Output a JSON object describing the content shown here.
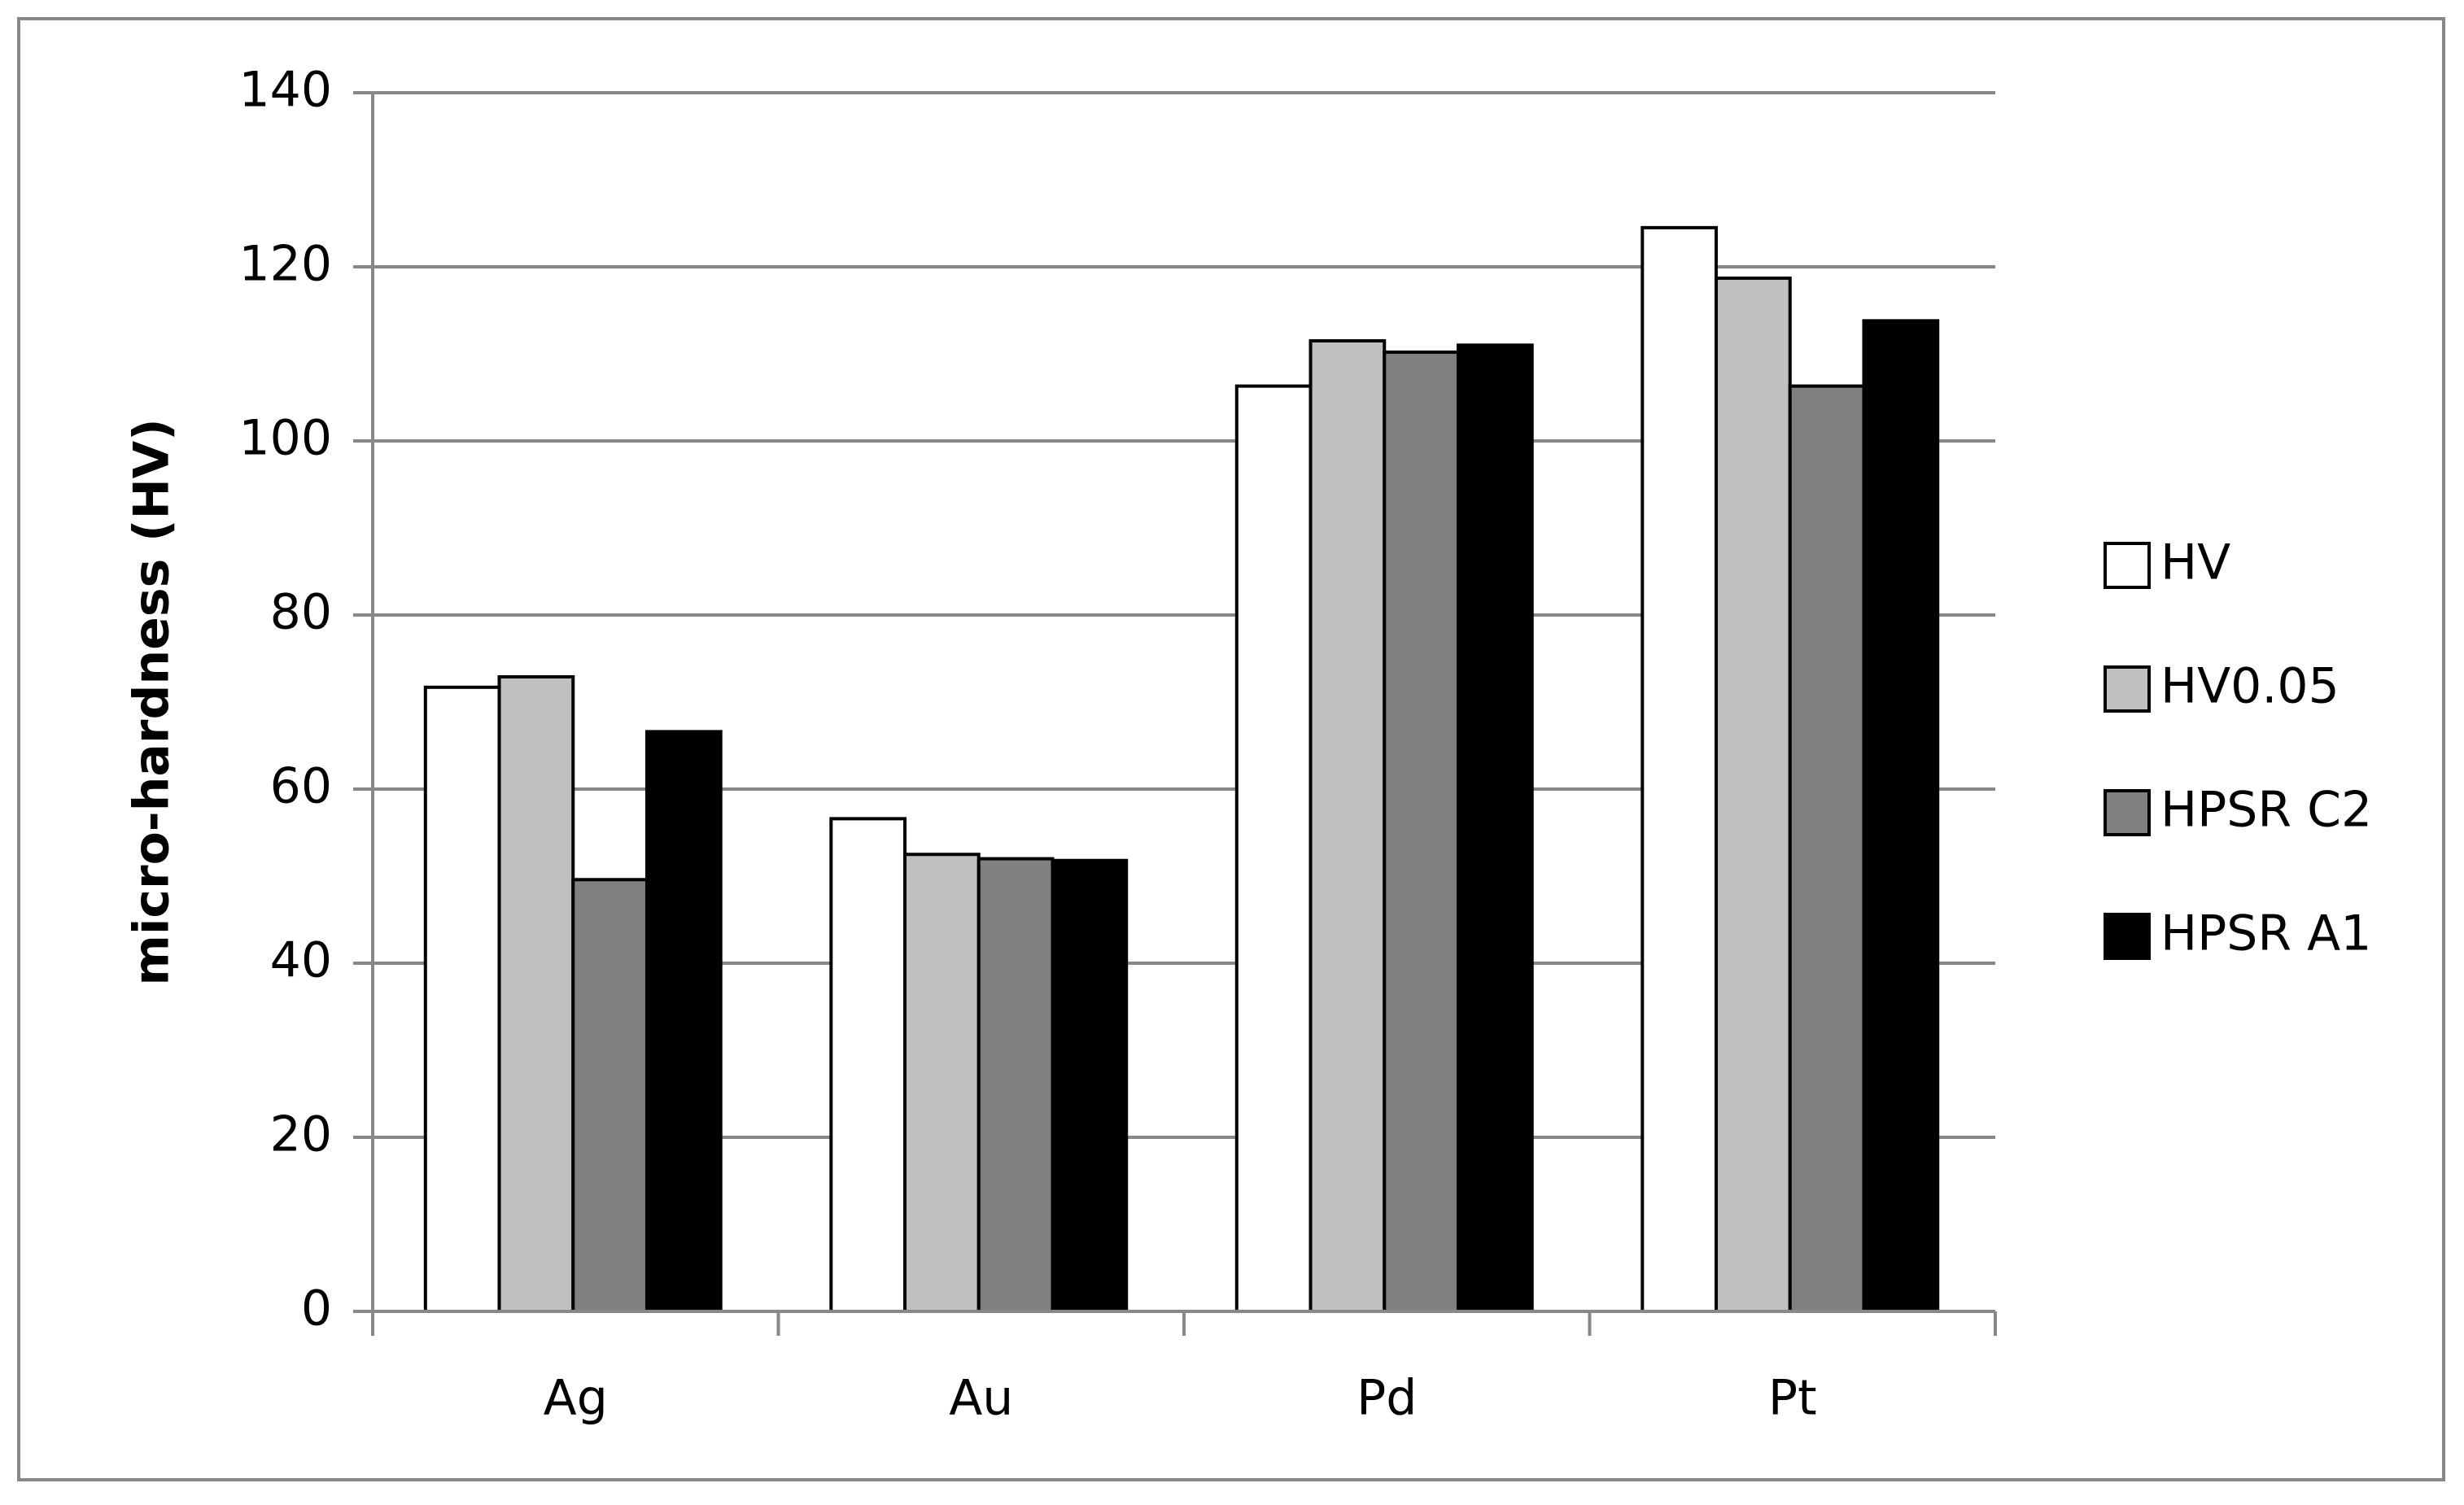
{
  "chart_data": {
    "type": "bar",
    "ylabel": "micro-hardness (HV)",
    "categories": [
      "Ag",
      "Au",
      "Pd",
      "Pt"
    ],
    "series": [
      {
        "name": "HV",
        "color": "#ffffff",
        "values": [
          71.7,
          56.6,
          106.3,
          124.5
        ]
      },
      {
        "name": "HV0.05",
        "color": "#c0c0c0",
        "values": [
          72.9,
          52.5,
          111.5,
          118.7
        ]
      },
      {
        "name": "HPSR C2",
        "color": "#808080",
        "values": [
          49.6,
          52.0,
          110.2,
          106.3
        ]
      },
      {
        "name": "HPSR A1",
        "color": "#000000",
        "values": [
          66.6,
          51.8,
          111.0,
          113.8
        ]
      }
    ],
    "ylim": [
      0,
      140
    ],
    "yticks": [
      0,
      20,
      40,
      60,
      80,
      100,
      120,
      140
    ],
    "grid": true,
    "legend": "right"
  }
}
